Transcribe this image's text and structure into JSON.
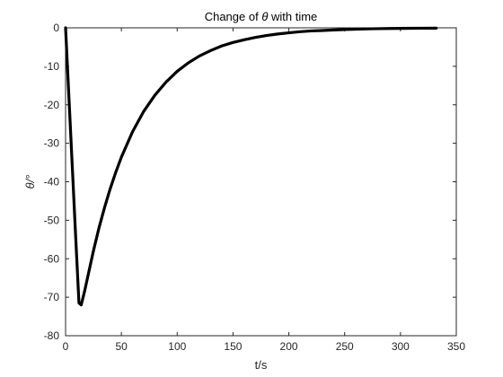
{
  "chart_data": {
    "type": "line",
    "title": "Change of θ with time",
    "title_parts": {
      "before": "Change of ",
      "symbol": "θ",
      "after": " with time"
    },
    "xlabel": "t/s",
    "ylabel": "θ/°",
    "xlim": [
      0,
      350
    ],
    "ylim": [
      -80,
      0
    ],
    "xticks": [
      0,
      50,
      100,
      150,
      200,
      250,
      300,
      350
    ],
    "yticks": [
      0,
      -10,
      -20,
      -30,
      -40,
      -50,
      -60,
      -70,
      -80
    ],
    "grid": true,
    "colors": {
      "line": "#000000",
      "grid": "#d9d9d9",
      "axes": "#262626"
    },
    "series": [
      {
        "x": [
          0,
          3,
          6,
          9,
          12,
          14,
          17,
          20,
          25,
          30,
          35,
          40,
          45,
          50,
          60,
          70,
          80,
          90,
          100,
          110,
          120,
          130,
          140,
          150,
          160,
          170,
          180,
          190,
          200,
          210,
          220,
          230,
          240,
          250,
          260,
          270,
          280,
          290,
          300,
          310,
          320,
          332
        ],
        "y": [
          0,
          -18,
          -36,
          -54,
          -71.5,
          -72.0,
          -68.5,
          -64.5,
          -57.9,
          -51.9,
          -46.6,
          -41.8,
          -37.5,
          -33.6,
          -27.0,
          -21.7,
          -17.5,
          -14.1,
          -11.3,
          -9.1,
          -7.3,
          -5.9,
          -4.7,
          -3.8,
          -3.1,
          -2.5,
          -2.0,
          -1.6,
          -1.3,
          -1.0,
          -0.8,
          -0.7,
          -0.55,
          -0.45,
          -0.35,
          -0.28,
          -0.22,
          -0.18,
          -0.15,
          -0.12,
          -0.1,
          -0.08
        ]
      }
    ]
  }
}
